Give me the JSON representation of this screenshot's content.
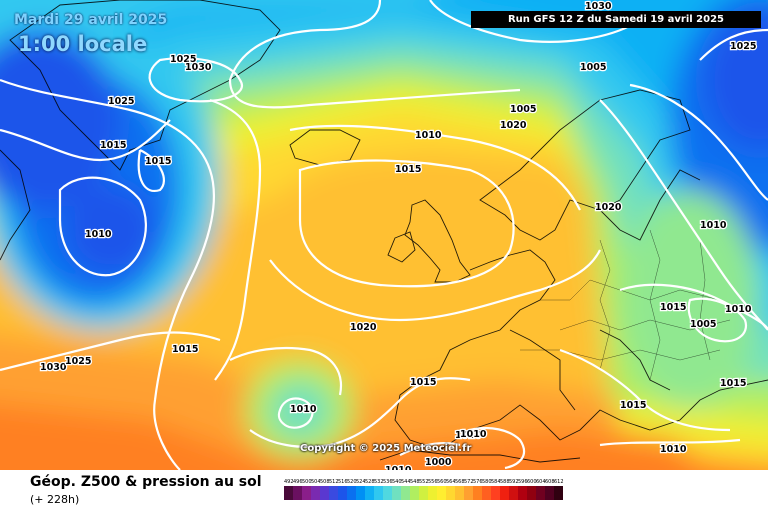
{
  "header": {
    "date": "Mardi 29 avril 2025",
    "local_time": "1:00 locale",
    "run": "Run GFS 12 Z du Samedi 19 avril 2025"
  },
  "copyright": "Copyright © 2025 Meteociel.fr",
  "footer": {
    "title": "Géop. Z500 & pression au sol",
    "subtitle": "(+ 228h)"
  },
  "legend_scale": {
    "values": [
      "492",
      "496",
      "500",
      "504",
      "508",
      "512",
      "516",
      "520",
      "524",
      "528",
      "532",
      "536",
      "540",
      "544",
      "548",
      "552",
      "556",
      "560",
      "564",
      "568",
      "572",
      "576",
      "580",
      "584",
      "588",
      "592",
      "596",
      "600",
      "604",
      "608",
      "612"
    ],
    "colors": [
      "#4a0a3a",
      "#6a1060",
      "#8a1e8a",
      "#7a2ab0",
      "#5a38d0",
      "#3a4ae0",
      "#1c55ea",
      "#0a70f0",
      "#0090f4",
      "#10b0f4",
      "#30c8f0",
      "#50d8e0",
      "#70e0c0",
      "#90e890",
      "#b0ee60",
      "#d0f040",
      "#eef030",
      "#ffee30",
      "#ffd830",
      "#ffc030",
      "#ffa030",
      "#ff8020",
      "#ff6020",
      "#ff4020",
      "#f02010",
      "#d01010",
      "#b00010",
      "#900010",
      "#700020",
      "#500020",
      "#300010"
    ]
  },
  "isobar_labels": [
    {
      "text": "1025"
    },
    {
      "text": "1030"
    },
    {
      "text": "1025"
    },
    {
      "text": "1015"
    },
    {
      "text": "1015"
    },
    {
      "text": "1010"
    },
    {
      "text": "1005"
    },
    {
      "text": "1005"
    },
    {
      "text": "1020"
    },
    {
      "text": "1010"
    },
    {
      "text": "1015"
    },
    {
      "text": "1025"
    },
    {
      "text": "1030"
    },
    {
      "text": "1020"
    },
    {
      "text": "1010"
    },
    {
      "text": "1015"
    },
    {
      "text": "1005"
    },
    {
      "text": "1010"
    },
    {
      "text": "1020"
    },
    {
      "text": "1015"
    },
    {
      "text": "1030"
    },
    {
      "text": "1025"
    },
    {
      "text": "1015"
    },
    {
      "text": "1010"
    },
    {
      "text": "1010"
    },
    {
      "text": "1010"
    },
    {
      "text": "1000"
    },
    {
      "text": "1010"
    },
    {
      "text": "1015"
    },
    {
      "text": "1010"
    },
    {
      "text": "1015"
    }
  ],
  "colors": {
    "low_geopotential": "#1c55ea",
    "high_geopotential": "#ffa030",
    "isobar": "#ffffff",
    "coastline": "#000000"
  }
}
